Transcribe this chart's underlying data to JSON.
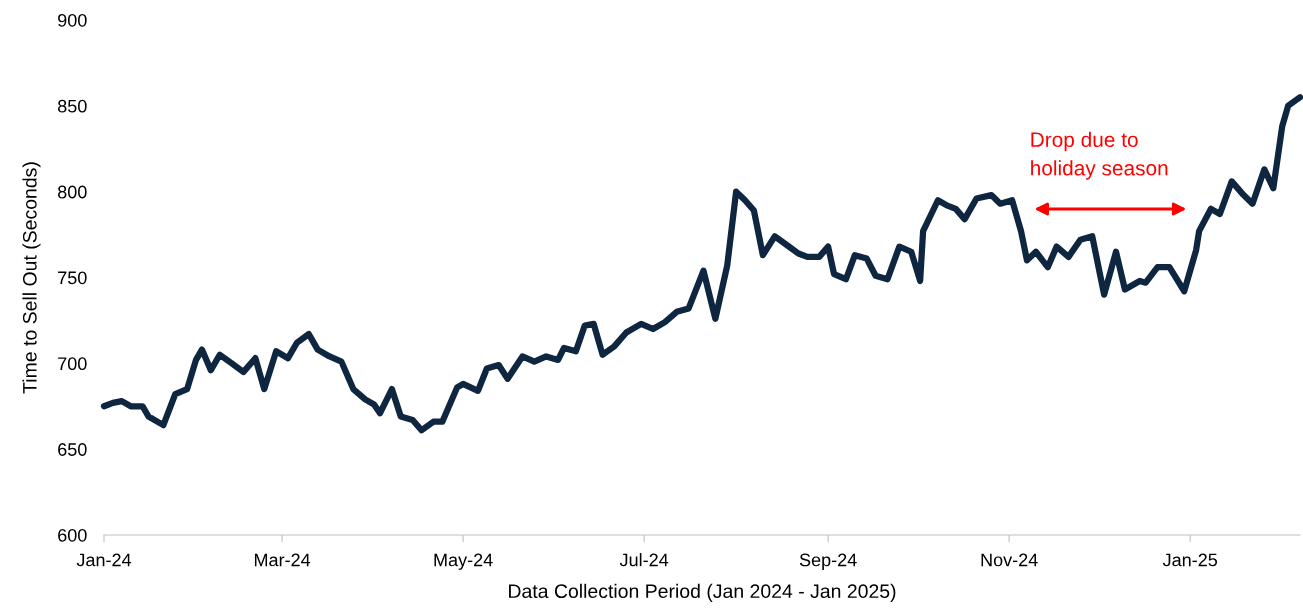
{
  "chart_data": {
    "type": "line",
    "xlabel": "Data Collection Period (Jan 2024 - Jan 2025)",
    "ylabel": "Time to Sell Out (Seconds)",
    "x": [
      "2024-01-01",
      "2024-01-04",
      "2024-01-07",
      "2024-01-10",
      "2024-01-14",
      "2024-01-16",
      "2024-01-21",
      "2024-01-25",
      "2024-01-29",
      "2024-02-01",
      "2024-02-03",
      "2024-02-06",
      "2024-02-09",
      "2024-02-13",
      "2024-02-17",
      "2024-02-21",
      "2024-02-24",
      "2024-02-28",
      "2024-03-03",
      "2024-03-06",
      "2024-03-10",
      "2024-03-13",
      "2024-03-17",
      "2024-03-21",
      "2024-03-25",
      "2024-03-29",
      "2024-04-01",
      "2024-04-03",
      "2024-04-07",
      "2024-04-10",
      "2024-04-14",
      "2024-04-17",
      "2024-04-21",
      "2024-04-24",
      "2024-04-29",
      "2024-05-01",
      "2024-05-06",
      "2024-05-09",
      "2024-05-13",
      "2024-05-16",
      "2024-05-21",
      "2024-05-25",
      "2024-05-29",
      "2024-06-02",
      "2024-06-04",
      "2024-06-08",
      "2024-06-11",
      "2024-06-14",
      "2024-06-17",
      "2024-06-21",
      "2024-06-25",
      "2024-06-30",
      "2024-07-04",
      "2024-07-08",
      "2024-07-12",
      "2024-07-16",
      "2024-07-21",
      "2024-07-25",
      "2024-07-29",
      "2024-08-01",
      "2024-08-04",
      "2024-08-07",
      "2024-08-10",
      "2024-08-14",
      "2024-08-18",
      "2024-08-22",
      "2024-08-25",
      "2024-08-29",
      "2024-09-01",
      "2024-09-03",
      "2024-09-07",
      "2024-09-10",
      "2024-09-14",
      "2024-09-17",
      "2024-09-21",
      "2024-09-25",
      "2024-09-29",
      "2024-10-02",
      "2024-10-03",
      "2024-10-08",
      "2024-10-11",
      "2024-10-14",
      "2024-10-17",
      "2024-10-21",
      "2024-10-26",
      "2024-10-29",
      "2024-11-02",
      "2024-11-05",
      "2024-11-07",
      "2024-11-10",
      "2024-11-14",
      "2024-11-17",
      "2024-11-21",
      "2024-11-25",
      "2024-11-29",
      "2024-12-03",
      "2024-12-07",
      "2024-12-10",
      "2024-12-15",
      "2024-12-17",
      "2024-12-21",
      "2024-12-25",
      "2024-12-30",
      "2025-01-03",
      "2025-01-04",
      "2025-01-08",
      "2025-01-11",
      "2025-01-15",
      "2025-01-19",
      "2025-01-22",
      "2025-01-26",
      "2025-01-29",
      "2025-02-01",
      "2025-02-03",
      "2025-02-07"
    ],
    "series": [
      {
        "color": "#0f2641",
        "values": [
          675,
          677,
          678,
          675,
          675,
          669,
          664,
          682,
          685,
          702,
          708,
          696,
          705,
          700,
          695,
          703,
          685,
          707,
          703,
          712,
          717,
          708,
          704,
          701,
          685,
          679,
          676,
          671,
          685,
          669,
          667,
          661,
          666,
          666,
          686,
          688,
          684,
          697,
          699,
          691,
          704,
          701,
          704,
          702,
          709,
          707,
          722,
          723,
          705,
          710,
          718,
          723,
          720,
          724,
          730,
          732,
          754,
          726,
          757,
          800,
          795,
          789,
          763,
          774,
          769,
          764,
          762,
          762,
          768,
          752,
          749,
          763,
          761,
          751,
          749,
          768,
          765,
          748,
          777,
          795,
          792,
          790,
          784,
          796,
          798,
          793,
          795,
          777,
          760,
          765,
          756,
          768,
          762,
          772,
          774,
          740,
          765,
          743,
          748,
          747,
          756,
          756,
          742,
          766,
          777,
          790,
          787,
          806,
          798,
          793,
          813,
          802,
          838,
          850,
          855
        ]
      }
    ],
    "xlim": [
      "2024-01-01",
      "2025-02-07"
    ],
    "xticks": [
      {
        "value": "2024-01-01",
        "label": "Jan-24"
      },
      {
        "value": "2024-03-01",
        "label": "Mar-24"
      },
      {
        "value": "2024-05-01",
        "label": "May-24"
      },
      {
        "value": "2024-07-01",
        "label": "Jul-24"
      },
      {
        "value": "2024-09-01",
        "label": "Sep-24"
      },
      {
        "value": "2024-11-01",
        "label": "Nov-24"
      },
      {
        "value": "2025-01-01",
        "label": "Jan-25"
      }
    ],
    "ylim": [
      600,
      900
    ],
    "yticks": [
      600,
      650,
      700,
      750,
      800,
      850,
      900
    ],
    "annotations": [
      "Drop due to\nholiday season"
    ],
    "grid": false,
    "legend": false,
    "marker": "none",
    "line_style": "solid"
  }
}
